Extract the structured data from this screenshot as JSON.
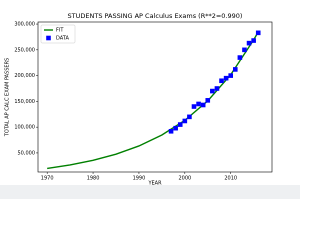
{
  "chart_data": {
    "type": "line",
    "title": "STUDENTS PASSING AP Calculus Exams (R**2=0.990)",
    "x_label": "YEAR",
    "y_label": "TOTAL AP CALC EXAM PASSERS",
    "xlim": [
      1968,
      2019
    ],
    "xticks": [
      1970,
      1980,
      1990,
      2000,
      2010
    ],
    "ylim": [
      13000,
      304000
    ],
    "yticks": [
      {
        "value": 50000,
        "label": "50,000"
      },
      {
        "value": 100000,
        "label": "100,000"
      },
      {
        "value": 150000,
        "label": "150,000"
      },
      {
        "value": 200000,
        "label": "200,000"
      },
      {
        "value": 250000,
        "label": "250,000"
      },
      {
        "value": 300000,
        "label": "300,000"
      }
    ],
    "legend": "upper left",
    "series": [
      {
        "name": "FIT",
        "color": "#008000",
        "style": "line",
        "x": [
          1970,
          1975,
          1980,
          1985,
          1990,
          1995,
          2000,
          2005,
          2010,
          2015,
          2016
        ],
        "values": [
          20000,
          26700,
          35640,
          47580,
          63520,
          84800,
          113200,
          151100,
          201700,
          269300,
          285000
        ]
      },
      {
        "name": "DATA",
        "color": "#0000ff",
        "style": "marker",
        "x": [
          1997,
          1998,
          1999,
          2000,
          2001,
          2002,
          2003,
          2004,
          2005,
          2006,
          2007,
          2008,
          2009,
          2010,
          2011,
          2012,
          2013,
          2014,
          2015,
          2016
        ],
        "values": [
          92000,
          98000,
          105000,
          112000,
          120000,
          140000,
          145000,
          143000,
          152000,
          170000,
          175000,
          190000,
          195000,
          200000,
          212000,
          235000,
          250000,
          263000,
          268000,
          283000
        ]
      }
    ]
  }
}
